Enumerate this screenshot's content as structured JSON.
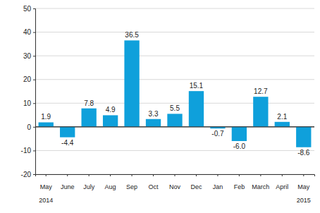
{
  "chart_data": {
    "type": "bar",
    "categories": [
      "May",
      "June",
      "July",
      "Aug",
      "Sep",
      "Oct",
      "Nov",
      "Dec",
      "Jan",
      "Feb",
      "March",
      "April",
      "May"
    ],
    "values": [
      1.9,
      -4.4,
      7.8,
      4.9,
      36.5,
      3.3,
      5.5,
      15.1,
      -0.7,
      -6.0,
      12.7,
      2.1,
      -8.6
    ],
    "value_labels": [
      "1.9",
      "-4.4",
      "7.8",
      "4.9",
      "36.5",
      "3.3",
      "5.5",
      "15.1",
      "-0.7",
      "-6.0",
      "12.7",
      "2.1",
      "-8.6"
    ],
    "data_labels": true,
    "color": "#0fa0db",
    "ylim": [
      -20,
      50
    ],
    "yticks": [
      -20,
      -10,
      0,
      10,
      20,
      30,
      40,
      50
    ],
    "grid": true,
    "annotations": [
      {
        "text": "2014",
        "x": 0
      },
      {
        "text": "2015",
        "x": 12
      }
    ]
  }
}
